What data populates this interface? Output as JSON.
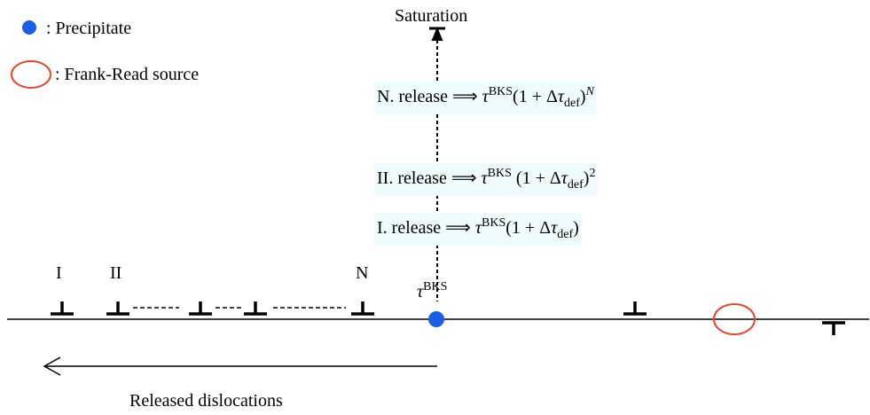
{
  "legend": [
    {
      "label": ": Precipitate"
    },
    {
      "label": ": Frank-Read source"
    }
  ],
  "saturation": "Saturation",
  "equations": [
    {
      "parts": [
        {
          "t": "N. release ⟹ "
        },
        {
          "t": "τ",
          "s": "i"
        },
        {
          "t": "BKS",
          "s": "sup"
        },
        {
          "t": "(1 + Δ"
        },
        {
          "t": "τ",
          "s": "i"
        },
        {
          "t": "def",
          "s": "sub"
        },
        {
          "t": ")"
        },
        {
          "t": "N",
          "s": "supi"
        }
      ]
    },
    {
      "parts": [
        {
          "t": "II. release ⟹ "
        },
        {
          "t": "τ",
          "s": "i"
        },
        {
          "t": "BKS",
          "s": "sup"
        },
        {
          "t": " (1 + Δ"
        },
        {
          "t": "τ",
          "s": "i"
        },
        {
          "t": "def",
          "s": "sub"
        },
        {
          "t": ")"
        },
        {
          "t": "2",
          "s": "sup"
        }
      ]
    },
    {
      "parts": [
        {
          "t": "I. release ⟹ "
        },
        {
          "t": "τ",
          "s": "i"
        },
        {
          "t": "BKS",
          "s": "sup"
        },
        {
          "t": "(1 + Δ"
        },
        {
          "t": "τ",
          "s": "i"
        },
        {
          "t": "def",
          "s": "sub"
        },
        {
          "t": ")"
        }
      ]
    }
  ],
  "dislocation_labels": [
    "I",
    "II",
    "N"
  ],
  "precipitate_label": {
    "parts": [
      {
        "t": "τ",
        "s": "i"
      },
      {
        "t": "BKS",
        "s": "sup"
      }
    ]
  },
  "bottom_label": "Released dislocations"
}
